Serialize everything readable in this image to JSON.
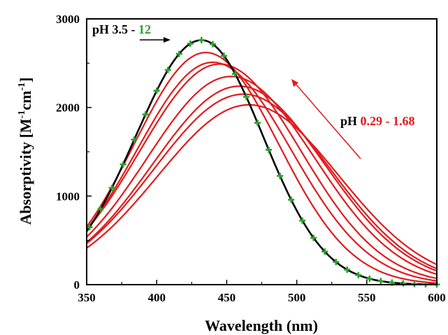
{
  "chart_data": {
    "type": "line",
    "xlabel": "Wavelength (nm)",
    "ylabel_parts": {
      "main": "Absorptivity [M",
      "sup1": "-1",
      "mid": "cm",
      "sup2": "-1",
      "end": "]"
    },
    "xlim": [
      350,
      600
    ],
    "ylim": [
      0,
      3000
    ],
    "x_ticks": [
      350,
      400,
      450,
      500,
      550,
      600
    ],
    "y_ticks": [
      0,
      1000,
      2000,
      3000
    ],
    "grid": false,
    "colors": {
      "high_ph_line": "#000000",
      "high_ph_markers": "#2ca02c",
      "low_ph_lines": "#e31a1c",
      "arrow_black": "#000000",
      "arrow_red": "#e31a1c"
    },
    "annotations": {
      "high_ph_prefix": "pH 3.5 - ",
      "high_ph_value": "12",
      "low_ph_prefix": "pH ",
      "low_ph_value": "0.29 - 1.68"
    },
    "series_high_ph": {
      "peak_x": 432,
      "peak_y": 2760,
      "sigma_left": 47,
      "sigma_right": 44,
      "marker": "plus",
      "marker_x": [
        352,
        360,
        368,
        376,
        384,
        392,
        400,
        408,
        416,
        424,
        432,
        440,
        448,
        456,
        464,
        472,
        480,
        488,
        496,
        504,
        512,
        520,
        528,
        536,
        544,
        552,
        560,
        568,
        576,
        584,
        592,
        600
      ]
    },
    "series_low_ph": [
      {
        "peak_x": 435,
        "peak_y": 2620,
        "sigma_left": 51,
        "sigma_right": 52
      },
      {
        "peak_x": 440,
        "peak_y": 2510,
        "sigma_left": 54,
        "sigma_right": 56
      },
      {
        "peak_x": 445,
        "peak_y": 2490,
        "sigma_left": 57,
        "sigma_right": 58
      },
      {
        "peak_x": 453,
        "peak_y": 2350,
        "sigma_left": 60,
        "sigma_right": 60
      },
      {
        "peak_x": 459,
        "peak_y": 2240,
        "sigma_left": 62,
        "sigma_right": 61
      },
      {
        "peak_x": 462,
        "peak_y": 2150,
        "sigma_left": 64,
        "sigma_right": 62
      },
      {
        "peak_x": 466,
        "peak_y": 2030,
        "sigma_left": 65,
        "sigma_right": 64
      }
    ]
  }
}
